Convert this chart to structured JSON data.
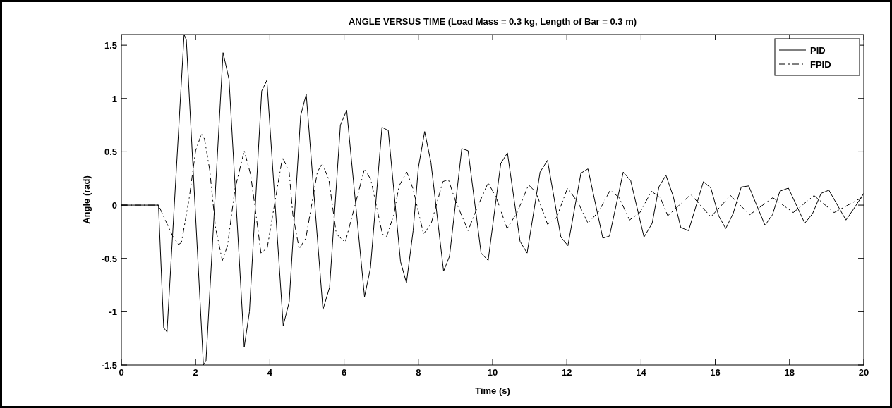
{
  "chart_data": {
    "type": "line",
    "title": "ANGLE VERSUS TIME (Load Mass = 0.3 kg, Length of Bar = 0.3 m)",
    "xlabel": "Time (s)",
    "ylabel": "Angle (rad)",
    "xlim": [
      0,
      20
    ],
    "ylim": [
      -1.5,
      1.6
    ],
    "xticks": [
      0,
      2,
      4,
      6,
      8,
      10,
      12,
      14,
      16,
      18,
      20
    ],
    "yticks": [
      -1.5,
      -1,
      -0.5,
      0,
      0.5,
      1,
      1.5
    ],
    "grid": false,
    "legend": "top right",
    "series": [
      {
        "name": "PID",
        "color": "#000000",
        "line_style": "solid",
        "x": [
          0,
          1.0,
          1.14,
          1.23,
          1.69,
          1.75,
          2.21,
          2.28,
          2.74,
          2.9,
          3.31,
          3.45,
          3.78,
          3.92,
          4.36,
          4.52,
          4.83,
          4.98,
          5.43,
          5.61,
          5.9,
          6.07,
          6.55,
          6.71,
          7.02,
          7.19,
          7.52,
          7.68,
          7.86,
          8.0,
          8.17,
          8.34,
          8.68,
          8.84,
          9.17,
          9.34,
          9.69,
          9.88,
          10.22,
          10.4,
          10.74,
          10.93,
          11.28,
          11.48,
          11.84,
          12.03,
          12.38,
          12.57,
          12.97,
          13.15,
          13.52,
          13.72,
          14.08,
          14.3,
          14.48,
          14.67,
          14.86,
          15.07,
          15.28,
          15.68,
          15.88,
          16.09,
          16.28,
          16.48,
          16.7,
          16.9,
          17.34,
          17.54,
          17.74,
          17.97,
          18.41,
          18.62,
          18.85,
          19.06,
          19.52,
          19.72,
          20
        ],
        "values": [
          0,
          0,
          -1.15,
          -1.19,
          1.6,
          1.55,
          -1.5,
          -1.46,
          1.43,
          1.18,
          -1.33,
          -1.0,
          1.07,
          1.17,
          -1.13,
          -0.91,
          0.84,
          1.04,
          -0.98,
          -0.77,
          0.75,
          0.89,
          -0.86,
          -0.59,
          0.73,
          0.7,
          -0.53,
          -0.73,
          -0.24,
          0.35,
          0.69,
          0.4,
          -0.62,
          -0.48,
          0.53,
          0.51,
          -0.45,
          -0.52,
          0.39,
          0.49,
          -0.34,
          -0.45,
          0.31,
          0.42,
          -0.3,
          -0.38,
          0.3,
          0.34,
          -0.31,
          -0.29,
          0.31,
          0.23,
          -0.3,
          -0.17,
          0.17,
          0.28,
          0.09,
          -0.21,
          -0.24,
          0.22,
          0.16,
          -0.1,
          -0.22,
          -0.08,
          0.17,
          0.18,
          -0.19,
          -0.09,
          0.13,
          0.16,
          -0.17,
          -0.08,
          0.11,
          0.14,
          -0.14,
          -0.04,
          0.11
        ]
      },
      {
        "name": "FPID",
        "color": "#000000",
        "line_style": "dashed",
        "x": [
          0,
          1.0,
          1.38,
          1.54,
          1.62,
          1.83,
          2.0,
          2.16,
          2.24,
          2.38,
          2.54,
          2.72,
          2.86,
          3.06,
          3.31,
          3.48,
          3.59,
          3.76,
          3.93,
          4.07,
          4.34,
          4.52,
          4.62,
          4.79,
          4.97,
          5.28,
          5.41,
          5.59,
          5.79,
          6.03,
          6.28,
          6.55,
          6.72,
          7.03,
          7.14,
          7.34,
          7.48,
          7.69,
          7.86,
          8.14,
          8.34,
          8.66,
          8.81,
          9.0,
          9.34,
          9.59,
          9.88,
          10.1,
          10.39,
          10.66,
          10.97,
          11.17,
          11.48,
          11.72,
          12.02,
          12.31,
          12.57,
          12.86,
          13.17,
          13.41,
          13.69,
          13.97,
          14.28,
          14.52,
          14.72,
          15.34,
          15.88,
          16.41,
          16.93,
          17.55,
          18.1,
          18.66,
          19.2,
          20
        ],
        "values": [
          0,
          0,
          -0.29,
          -0.37,
          -0.35,
          0.07,
          0.51,
          0.67,
          0.62,
          0.33,
          -0.22,
          -0.52,
          -0.38,
          0.15,
          0.51,
          0.29,
          0.01,
          -0.45,
          -0.4,
          -0.11,
          0.45,
          0.31,
          -0.09,
          -0.41,
          -0.31,
          0.31,
          0.39,
          0.24,
          -0.27,
          -0.35,
          -0.02,
          0.34,
          0.24,
          -0.27,
          -0.3,
          -0.09,
          0.18,
          0.31,
          0.15,
          -0.27,
          -0.18,
          0.22,
          0.24,
          0.04,
          -0.24,
          -0.02,
          0.21,
          0.07,
          -0.22,
          -0.07,
          0.19,
          0.12,
          -0.18,
          -0.12,
          0.16,
          0.02,
          -0.17,
          -0.06,
          0.14,
          0.07,
          -0.14,
          -0.07,
          0.13,
          0.07,
          -0.1,
          0.1,
          -0.11,
          0.09,
          -0.09,
          0.07,
          -0.07,
          0.09,
          -0.07,
          0.08
        ]
      }
    ]
  }
}
